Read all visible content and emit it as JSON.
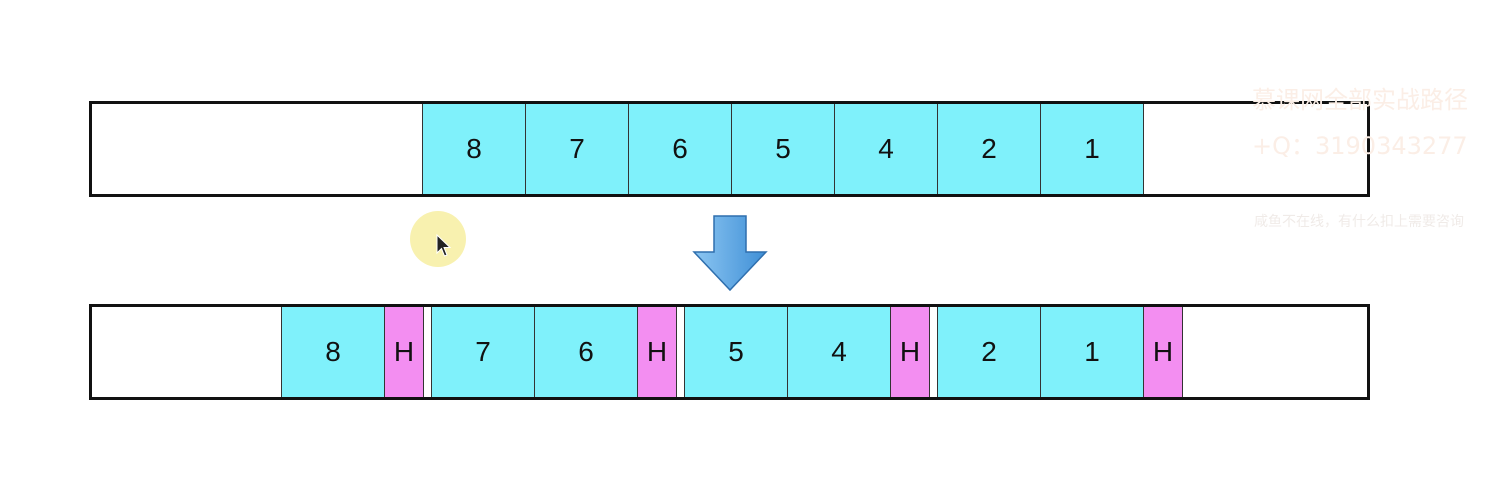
{
  "top_row": {
    "cells": [
      {
        "label": "8",
        "kind": "data"
      },
      {
        "label": "7",
        "kind": "data"
      },
      {
        "label": "6",
        "kind": "data"
      },
      {
        "label": "5",
        "kind": "data"
      },
      {
        "label": "4",
        "kind": "data"
      },
      {
        "label": "2",
        "kind": "data"
      },
      {
        "label": "1",
        "kind": "data"
      }
    ]
  },
  "bottom_row": {
    "cells": [
      {
        "label": "8",
        "kind": "data"
      },
      {
        "label": "H",
        "kind": "header"
      },
      {
        "label": "7",
        "kind": "data"
      },
      {
        "label": "6",
        "kind": "data"
      },
      {
        "label": "H",
        "kind": "header"
      },
      {
        "label": "5",
        "kind": "data"
      },
      {
        "label": "4",
        "kind": "data"
      },
      {
        "label": "H",
        "kind": "header"
      },
      {
        "label": "2",
        "kind": "data"
      },
      {
        "label": "1",
        "kind": "data"
      },
      {
        "label": "H",
        "kind": "header"
      }
    ]
  },
  "watermark": {
    "line1": "慕课网全部实战路径",
    "line2": "+Q：3190343277",
    "line3": "咸鱼不在线，有什么扣上需要咨询"
  },
  "colors": {
    "data_cell": "#7ff1fb",
    "header_cell": "#f38ef1",
    "arrow": "#5aa9e6"
  },
  "icons": {
    "down_arrow": "down-arrow-icon",
    "cursor": "cursor-icon"
  }
}
